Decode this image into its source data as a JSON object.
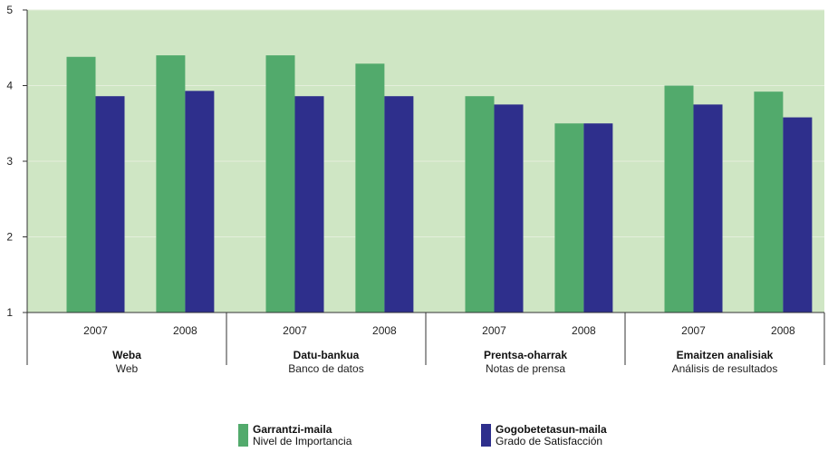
{
  "chart_data": {
    "type": "bar",
    "ylim": [
      1,
      5
    ],
    "yticks": [
      1,
      2,
      3,
      4,
      5
    ],
    "grid": true,
    "legend_position": "bottom",
    "groups": [
      {
        "label_bold": "Weba",
        "label": "Web",
        "categories": [
          "2007",
          "2008"
        ]
      },
      {
        "label_bold": "Datu-bankua",
        "label": "Banco de datos",
        "categories": [
          "2007",
          "2008"
        ]
      },
      {
        "label_bold": "Prentsa-oharrak",
        "label": "Notas de prensa",
        "categories": [
          "2007",
          "2008"
        ]
      },
      {
        "label_bold": "Emaitzen analisiak",
        "label": "Análisis de resultados",
        "categories": [
          "2007",
          "2008"
        ]
      }
    ],
    "series": [
      {
        "name": "Garrantzi-maila",
        "name_sub": "Nivel de Importancia",
        "color": "#52aa6c",
        "values": [
          4.38,
          4.4,
          4.4,
          4.29,
          3.86,
          3.5,
          4.0,
          3.92
        ]
      },
      {
        "name": "Gogobetetasun-maila",
        "name_sub": "Grado de Satisfacción",
        "color": "#2e2f8c",
        "values": [
          3.86,
          3.93,
          3.86,
          3.86,
          3.75,
          3.5,
          3.75,
          3.58
        ]
      }
    ],
    "plot_background": "#cfe6c4"
  }
}
